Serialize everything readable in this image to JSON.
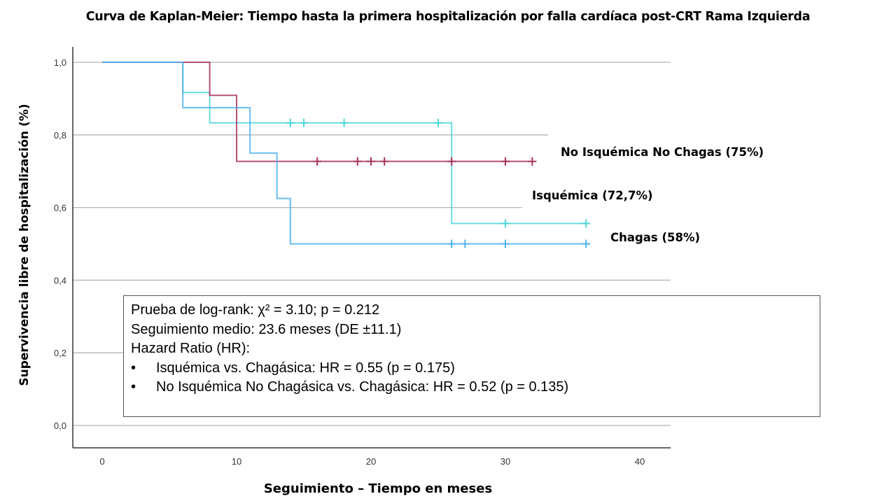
{
  "chart_data": {
    "type": "line",
    "subtype": "kaplan-meier-step",
    "title": "Curva de Kaplan-Meier: Tiempo hasta la primera hospitalización por falla cardíaca post-CRT Rama Izquierda",
    "xlabel": "Seguimiento – Tiempo en meses",
    "ylabel": "Supervivencia libre de hospitalización (%)",
    "xlim": [
      0,
      40
    ],
    "ylim": [
      0.0,
      1.0
    ],
    "xticks": [
      "0",
      "10",
      "20",
      "30",
      "40"
    ],
    "yticks": [
      "0,0",
      "0,2",
      "0,4",
      "0,6",
      "0,8",
      "1,0"
    ],
    "grid": "horizontal",
    "series": [
      {
        "name": "Isquémica (72,7%)",
        "color": "#4fd6dd",
        "steps": [
          [
            0,
            1.0
          ],
          [
            6,
            0.917
          ],
          [
            8,
            0.833
          ],
          [
            26,
            0.556
          ],
          [
            36,
            0.556
          ]
        ],
        "censored": [
          [
            14,
            0.833
          ],
          [
            15,
            0.833
          ],
          [
            18,
            0.833
          ],
          [
            25,
            0.833
          ],
          [
            30,
            0.556
          ],
          [
            36,
            0.556
          ]
        ]
      },
      {
        "name": "No Isquémica No Chagas (75%)",
        "color": "#a8335f",
        "steps": [
          [
            0,
            1.0
          ],
          [
            8,
            0.909
          ],
          [
            10,
            0.727
          ],
          [
            32,
            0.727
          ]
        ],
        "censored": [
          [
            16,
            0.727
          ],
          [
            19,
            0.727
          ],
          [
            20,
            0.727
          ],
          [
            21,
            0.727
          ],
          [
            26,
            0.727
          ],
          [
            30,
            0.727
          ],
          [
            32,
            0.727
          ]
        ]
      },
      {
        "name": "Chagas (58%)",
        "color": "#4fb0ef",
        "steps": [
          [
            0,
            1.0
          ],
          [
            6,
            0.875
          ],
          [
            11,
            0.75
          ],
          [
            13,
            0.625
          ],
          [
            14,
            0.5
          ],
          [
            36,
            0.5
          ]
        ],
        "censored": [
          [
            26,
            0.5
          ],
          [
            27,
            0.5
          ],
          [
            30,
            0.5
          ],
          [
            36,
            0.5
          ]
        ]
      }
    ],
    "annotations": {
      "series_labels": [
        "No Isquémica No Chagas (75%)",
        "Isquémica (72,7%)",
        "Chagas (58%)"
      ],
      "stats": [
        "Prueba de log-rank: χ² = 3.10; p = 0.212",
        "Seguimiento medio: 23.6 meses (DE ±11.1)",
        "Hazard Ratio (HR):"
      ],
      "bullets": [
        "Isquémica vs. Chagásica: HR = 0.55 (p = 0.175)",
        "No Isquémica No Chagásica vs. Chagásica: HR = 0.52 (p = 0.135)"
      ],
      "bullet_char": "•"
    }
  }
}
